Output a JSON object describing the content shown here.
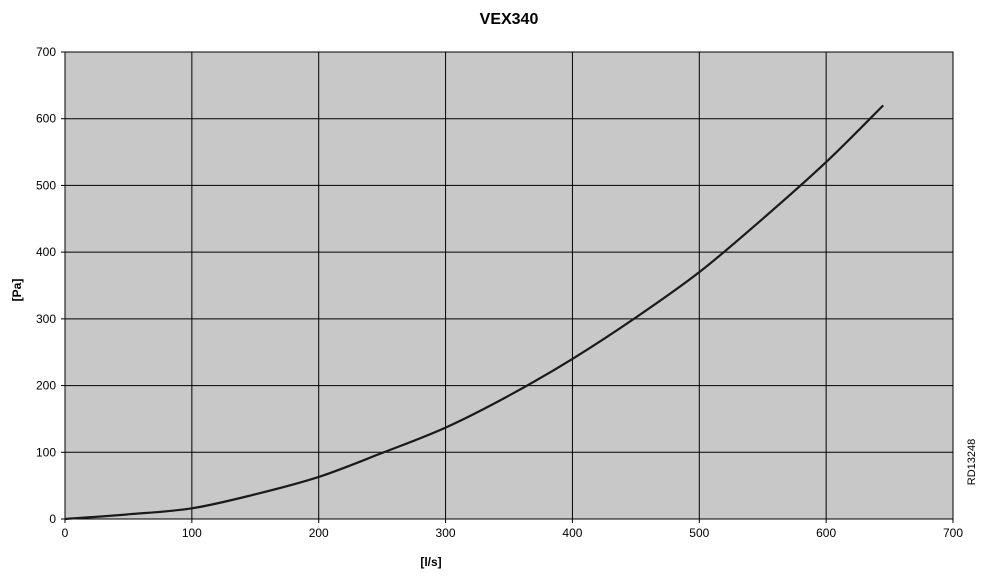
{
  "chart_data": {
    "type": "line",
    "title": "VEX340",
    "xlabel": "[l/s]",
    "ylabel": "[Pa]",
    "xlim": [
      0,
      700
    ],
    "ylim": [
      0,
      700
    ],
    "xticks": [
      "0",
      "100",
      "200",
      "300",
      "400",
      "500",
      "600",
      "700"
    ],
    "yticks": [
      "0",
      "100",
      "200",
      "300",
      "400",
      "500",
      "600",
      "700"
    ],
    "grid": true,
    "legend": "none",
    "colors": {
      "plot_bg": "#c8c8c8",
      "grid": "#000000",
      "line": "#1a1a1a"
    },
    "series": [
      {
        "x": [
          0,
          50,
          100,
          150,
          200,
          250,
          300,
          350,
          400,
          450,
          500,
          550,
          600,
          645
        ],
        "y": [
          0,
          7,
          16,
          37,
          63,
          99,
          137,
          185,
          240,
          302,
          370,
          450,
          535,
          620
        ]
      }
    ]
  },
  "reference_code": "RD13248"
}
